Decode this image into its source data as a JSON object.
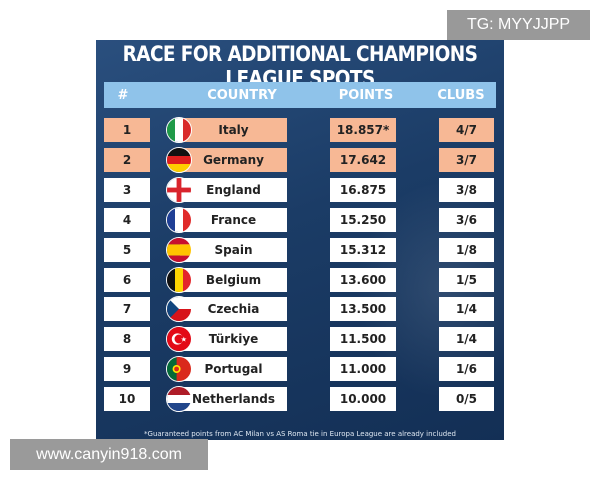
{
  "watermarks": {
    "top": "TG: MYYJJPP",
    "bottom": "www.canyin918.com"
  },
  "title": "RACE FOR ADDITIONAL CHAMPIONS LEAGUE SPOTS",
  "columns": {
    "num": "#",
    "country": "COUNTRY",
    "points": "POINTS",
    "clubs": "CLUBS"
  },
  "rows": [
    {
      "rank": "1",
      "country": "Italy",
      "points": "18.857*",
      "clubs": "4/7",
      "highlight": true,
      "flag": "italy-flag-icon"
    },
    {
      "rank": "2",
      "country": "Germany",
      "points": "17.642",
      "clubs": "3/7",
      "highlight": true,
      "flag": "germany-flag-icon"
    },
    {
      "rank": "3",
      "country": "England",
      "points": "16.875",
      "clubs": "3/8",
      "highlight": false,
      "flag": "england-flag-icon"
    },
    {
      "rank": "4",
      "country": "France",
      "points": "15.250",
      "clubs": "3/6",
      "highlight": false,
      "flag": "france-flag-icon"
    },
    {
      "rank": "5",
      "country": "Spain",
      "points": "15.312",
      "clubs": "1/8",
      "highlight": false,
      "flag": "spain-flag-icon"
    },
    {
      "rank": "6",
      "country": "Belgium",
      "points": "13.600",
      "clubs": "1/5",
      "highlight": false,
      "flag": "belgium-flag-icon"
    },
    {
      "rank": "7",
      "country": "Czechia",
      "points": "13.500",
      "clubs": "1/4",
      "highlight": false,
      "flag": "czechia-flag-icon"
    },
    {
      "rank": "8",
      "country": "Türkiye",
      "points": "11.500",
      "clubs": "1/4",
      "highlight": false,
      "flag": "turkiye-flag-icon"
    },
    {
      "rank": "9",
      "country": "Portugal",
      "points": "11.000",
      "clubs": "1/6",
      "highlight": false,
      "flag": "portugal-flag-icon"
    },
    {
      "rank": "10",
      "country": "Netherlands",
      "points": "10.000",
      "clubs": "0/5",
      "highlight": false,
      "flag": "netherlands-flag-icon"
    }
  ],
  "footnote": "*Guaranteed points from AC Milan vs AS Roma tie in Europa League are already included",
  "colors": {
    "highlight": "#f7b895",
    "header": "#8fc3ea",
    "panel": "#1b3c66"
  }
}
